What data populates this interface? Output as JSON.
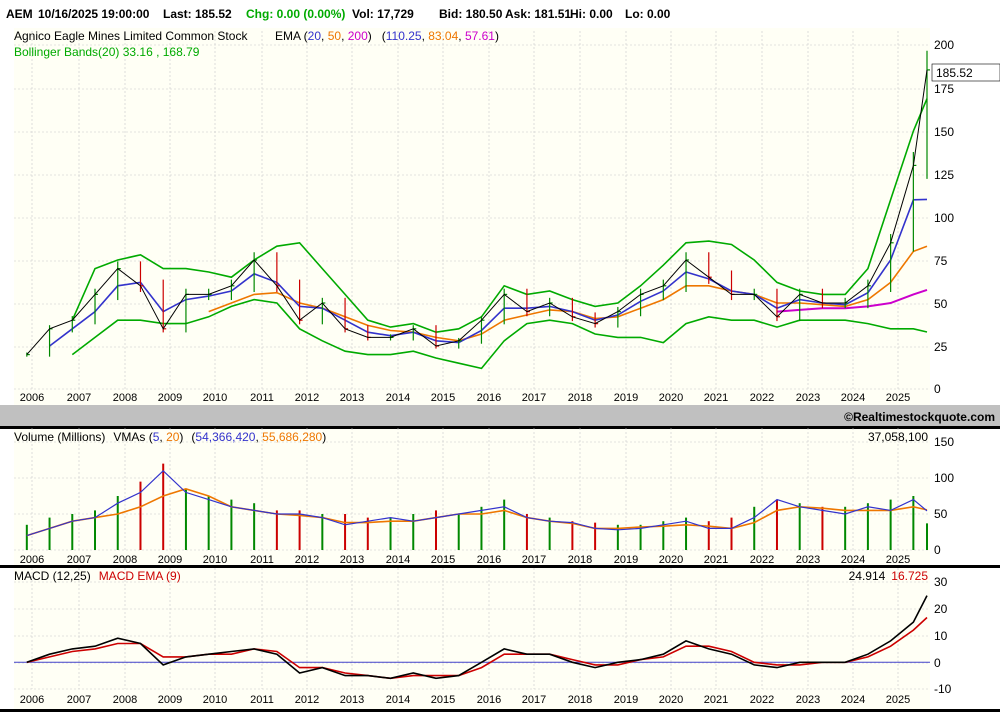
{
  "quote": {
    "symbol": "AEM",
    "datetime": "10/16/2025 19:00:00",
    "last": "Last: 185.52",
    "chg": "Chg: 0.00 (0.00%)",
    "vol": "Vol: 17,729",
    "bid": "Bid: 180.50",
    "ask": "Ask: 181.51",
    "hi": "Hi: 0.00",
    "lo": "Lo: 0.00"
  },
  "colors": {
    "panel_bg": "#fffff5",
    "grid": "#c8c8c8",
    "ema20": "#3333cc",
    "ema50": "#ee7700",
    "ema200": "#cc00cc",
    "bollinger": "#00aa00",
    "up": "#008800",
    "down": "#cc0000",
    "macd": "#000000",
    "macd_signal": "#cc0000",
    "zero_line": "#4444cc",
    "divider": "#c0c0c0"
  },
  "price_panel": {
    "title": "Agnico Eagle Mines Limited Common Stock",
    "ema_label": "EMA (",
    "ema_p1": "20",
    "ema_p2": "50",
    "ema_p3": "200",
    "ema_close": ")",
    "ema_v_open": "(",
    "ema_v1": "110.25",
    "ema_v2": "83.04",
    "ema_v3": "57.61",
    "ema_v_close": ")",
    "bollinger_label": "Bollinger Bands(20) 33.16 , 168.79",
    "last_price_tag": "185.52",
    "y_ticks": [
      "200",
      "175",
      "150",
      "125",
      "100",
      "75",
      "50",
      "25",
      "0"
    ],
    "watermark": "©Realtimestockquote.com"
  },
  "volume_panel": {
    "title": "Volume (Millions)",
    "vma_label": "VMAs (",
    "vma_p1": "5",
    "vma_p2": "20",
    "vma_close": ")",
    "vma_v_open": "(",
    "vma_v1": "54,366,420",
    "vma_v2": "55,686,280",
    "vma_v_close": ")",
    "last_volume": "37,058,100",
    "y_ticks": [
      "150",
      "100",
      "50",
      "0"
    ]
  },
  "macd_panel": {
    "label": "MACD (12,25)",
    "signal_label": "MACD EMA (9)",
    "macd_value": "24.914",
    "signal_value": "16.725",
    "y_ticks": [
      "30",
      "20",
      "10",
      "0",
      "-10"
    ]
  },
  "x_labels": [
    "2006",
    "2007",
    "2008",
    "2009",
    "2010",
    "2011",
    "2012",
    "2013",
    "2014",
    "2015",
    "2016",
    "2017",
    "2018",
    "2019",
    "2020",
    "2021",
    "2022",
    "2023",
    "2024",
    "2025"
  ],
  "chart_data": [
    {
      "type": "line",
      "title": "Agnico Eagle Mines Limited Common Stock",
      "ylim": [
        0,
        200
      ],
      "x": [
        "2006",
        "2006.5",
        "2007",
        "2007.5",
        "2008",
        "2008.5",
        "2009",
        "2009.5",
        "2010",
        "2010.5",
        "2011",
        "2011.5",
        "2012",
        "2012.5",
        "2013",
        "2013.5",
        "2014",
        "2014.5",
        "2015",
        "2015.5",
        "2016",
        "2016.5",
        "2017",
        "2017.5",
        "2018",
        "2018.5",
        "2019",
        "2019.5",
        "2020",
        "2020.5",
        "2021",
        "2021.5",
        "2022",
        "2022.5",
        "2023",
        "2023.5",
        "2024",
        "2024.5",
        "2025",
        "2025.5",
        "2025.8"
      ],
      "series": [
        {
          "name": "Close",
          "values": [
            20,
            35,
            40,
            55,
            70,
            60,
            35,
            55,
            55,
            60,
            75,
            60,
            40,
            50,
            35,
            30,
            30,
            35,
            25,
            28,
            40,
            55,
            45,
            50,
            42,
            38,
            45,
            55,
            60,
            75,
            65,
            55,
            55,
            42,
            55,
            50,
            50,
            60,
            85,
            130,
            185.52
          ]
        },
        {
          "name": "EMA 20",
          "values": [
            null,
            25,
            35,
            45,
            60,
            62,
            45,
            52,
            54,
            57,
            67,
            62,
            48,
            47,
            40,
            33,
            31,
            33,
            28,
            27,
            34,
            47,
            47,
            48,
            45,
            40,
            43,
            51,
            57,
            68,
            64,
            57,
            55,
            47,
            52,
            50,
            49,
            56,
            75,
            110,
            110.25
          ]
        },
        {
          "name": "EMA 50",
          "values": [
            null,
            null,
            null,
            null,
            null,
            null,
            null,
            null,
            45,
            50,
            55,
            56,
            50,
            47,
            42,
            37,
            34,
            33,
            30,
            28,
            32,
            40,
            43,
            46,
            45,
            41,
            42,
            47,
            52,
            60,
            60,
            57,
            55,
            50,
            50,
            49,
            48,
            52,
            62,
            80,
            83.04
          ]
        },
        {
          "name": "EMA 200",
          "values": [
            null,
            null,
            null,
            null,
            null,
            null,
            null,
            null,
            null,
            null,
            null,
            null,
            null,
            null,
            null,
            null,
            null,
            null,
            null,
            null,
            null,
            null,
            null,
            null,
            null,
            null,
            null,
            null,
            null,
            null,
            null,
            null,
            null,
            45,
            46,
            47,
            47,
            48,
            50,
            55,
            57.61
          ]
        },
        {
          "name": "Bollinger Upper",
          "values": [
            null,
            null,
            40,
            70,
            75,
            78,
            70,
            70,
            68,
            65,
            75,
            83,
            85,
            70,
            55,
            40,
            36,
            38,
            33,
            35,
            42,
            60,
            55,
            57,
            52,
            48,
            50,
            60,
            72,
            85,
            86,
            84,
            75,
            62,
            57,
            55,
            55,
            70,
            110,
            150,
            168.79
          ]
        },
        {
          "name": "Bollinger Lower",
          "values": [
            null,
            null,
            20,
            30,
            40,
            40,
            38,
            38,
            42,
            48,
            52,
            50,
            35,
            28,
            22,
            20,
            20,
            22,
            18,
            15,
            12,
            28,
            38,
            40,
            38,
            32,
            30,
            30,
            27,
            38,
            42,
            40,
            40,
            36,
            40,
            40,
            40,
            38,
            35,
            35,
            33.16
          ]
        }
      ]
    },
    {
      "type": "bar",
      "title": "Volume (Millions)",
      "ylim": [
        0,
        150
      ],
      "x": [
        "2006",
        "2006.5",
        "2007",
        "2007.5",
        "2008",
        "2008.5",
        "2009",
        "2009.5",
        "2010",
        "2010.5",
        "2011",
        "2011.5",
        "2012",
        "2012.5",
        "2013",
        "2013.5",
        "2014",
        "2014.5",
        "2015",
        "2015.5",
        "2016",
        "2016.5",
        "2017",
        "2017.5",
        "2018",
        "2018.5",
        "2019",
        "2019.5",
        "2020",
        "2020.5",
        "2021",
        "2021.5",
        "2022",
        "2022.5",
        "2023",
        "2023.5",
        "2024",
        "2024.5",
        "2025",
        "2025.5",
        "2025.8"
      ],
      "series": [
        {
          "name": "Volume",
          "values": [
            35,
            45,
            50,
            55,
            75,
            95,
            120,
            85,
            75,
            70,
            65,
            55,
            55,
            50,
            50,
            45,
            45,
            50,
            55,
            50,
            60,
            70,
            50,
            45,
            40,
            38,
            35,
            35,
            40,
            45,
            40,
            45,
            60,
            70,
            65,
            60,
            60,
            65,
            70,
            75,
            37
          ]
        },
        {
          "name": "VMA 5",
          "values": [
            20,
            30,
            40,
            45,
            65,
            80,
            110,
            80,
            70,
            60,
            55,
            50,
            50,
            45,
            35,
            40,
            45,
            40,
            45,
            50,
            55,
            60,
            45,
            40,
            38,
            30,
            28,
            30,
            35,
            40,
            30,
            30,
            45,
            70,
            60,
            55,
            50,
            60,
            55,
            70,
            54.37
          ]
        },
        {
          "name": "VMA 20",
          "values": [
            20,
            30,
            40,
            45,
            50,
            60,
            75,
            85,
            75,
            60,
            55,
            50,
            48,
            45,
            38,
            38,
            40,
            40,
            45,
            50,
            50,
            55,
            45,
            40,
            37,
            30,
            30,
            32,
            33,
            35,
            33,
            30,
            38,
            55,
            60,
            58,
            55,
            55,
            55,
            60,
            55.69
          ]
        }
      ]
    },
    {
      "type": "line",
      "title": "MACD (12,25)",
      "ylim": [
        -10,
        30
      ],
      "x": [
        "2006",
        "2006.5",
        "2007",
        "2007.5",
        "2008",
        "2008.5",
        "2009",
        "2009.5",
        "2010",
        "2010.5",
        "2011",
        "2011.5",
        "2012",
        "2012.5",
        "2013",
        "2013.5",
        "2014",
        "2014.5",
        "2015",
        "2015.5",
        "2016",
        "2016.5",
        "2017",
        "2017.5",
        "2018",
        "2018.5",
        "2019",
        "2019.5",
        "2020",
        "2020.5",
        "2021",
        "2021.5",
        "2022",
        "2022.5",
        "2023",
        "2023.5",
        "2024",
        "2024.5",
        "2025",
        "2025.5",
        "2025.8"
      ],
      "series": [
        {
          "name": "MACD",
          "values": [
            0,
            3,
            5,
            6,
            9,
            7,
            -1,
            2,
            3,
            4,
            5,
            3,
            -4,
            -2,
            -5,
            -5,
            -6,
            -4,
            -6,
            -5,
            0,
            5,
            3,
            3,
            0,
            -2,
            0,
            1,
            3,
            8,
            5,
            3,
            -1,
            -2,
            0,
            0,
            0,
            3,
            8,
            15,
            24.914
          ]
        },
        {
          "name": "MACD EMA",
          "values": [
            0,
            2,
            4,
            5,
            7,
            7,
            2,
            2,
            3,
            3,
            5,
            4,
            -2,
            -2,
            -4,
            -5,
            -6,
            -5,
            -5,
            -5,
            -2,
            3,
            3,
            3,
            1,
            -1,
            -1,
            1,
            2,
            6,
            6,
            4,
            0,
            -1,
            -1,
            0,
            0,
            2,
            6,
            12,
            16.725
          ]
        }
      ]
    }
  ]
}
